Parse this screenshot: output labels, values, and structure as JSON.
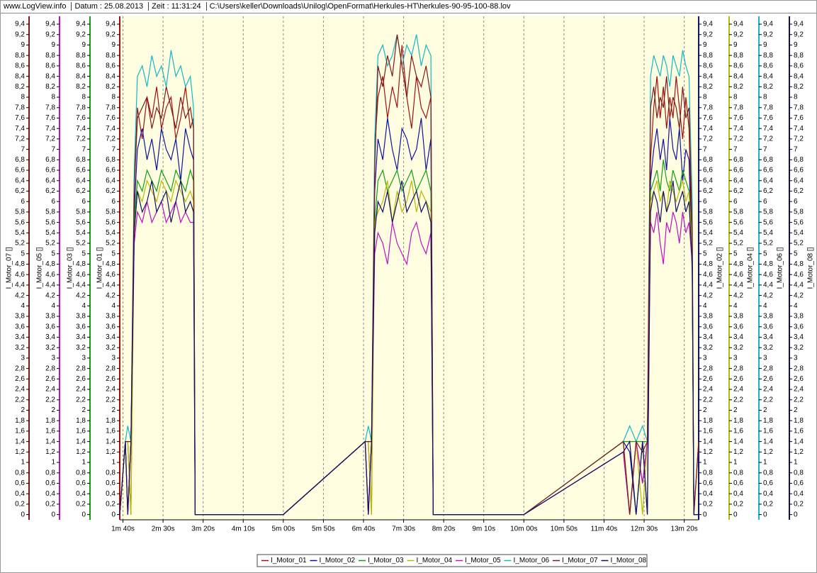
{
  "header": {
    "site": "www.LogView.info",
    "date": "Datum : 25.08.2013",
    "time": "Zeit : 11:31:24",
    "file": "C:\\Users\\keller\\Downloads\\Unilog\\OpenFormat\\Herkules-HT\\herkules-90-95-100-88.lov"
  },
  "chart_data": {
    "type": "line",
    "grid": true,
    "legend": "bottom",
    "x": [
      96,
      103,
      106,
      110,
      114,
      118,
      124,
      130,
      136,
      142,
      148,
      154,
      160,
      166,
      172,
      178,
      184,
      188,
      190,
      300,
      402,
      406,
      410,
      414,
      418,
      424,
      430,
      436,
      442,
      448,
      454,
      460,
      466,
      472,
      478,
      484,
      487,
      489,
      600,
      724,
      732,
      740,
      748,
      754,
      758,
      762,
      766,
      770,
      774,
      778,
      782,
      786,
      790,
      794,
      798,
      802,
      806,
      810,
      812,
      818
    ],
    "xlim": [
      96,
      818
    ],
    "xticks": [
      {
        "value": 100,
        "label": "1m 40s"
      },
      {
        "value": 150,
        "label": "2m 30s"
      },
      {
        "value": 200,
        "label": "3m 20s"
      },
      {
        "value": 250,
        "label": "4m 10s"
      },
      {
        "value": 300,
        "label": "5m 00s"
      },
      {
        "value": 350,
        "label": "5m 50s"
      },
      {
        "value": 400,
        "label": "6m 40s"
      },
      {
        "value": 450,
        "label": "7m 30s"
      },
      {
        "value": 500,
        "label": "8m 20s"
      },
      {
        "value": 550,
        "label": "9m 10s"
      },
      {
        "value": 600,
        "label": "10m 00s"
      },
      {
        "value": 650,
        "label": "10m 50s"
      },
      {
        "value": 700,
        "label": "11m 40s"
      },
      {
        "value": 750,
        "label": "12m 30s"
      },
      {
        "value": 800,
        "label": "13m 20s"
      }
    ],
    "ylim": [
      -0.1,
      9.55
    ],
    "yticks": [
      0,
      {
        "value": 0.2,
        "label": "0,2"
      },
      {
        "value": 0.4,
        "label": "0,4"
      },
      {
        "value": 0.6,
        "label": "0,6"
      },
      {
        "value": 0.8,
        "label": "0,8"
      },
      1,
      {
        "value": 1.2,
        "label": "1,2"
      },
      {
        "value": 1.4,
        "label": "1,4"
      },
      {
        "value": 1.6,
        "label": "1,6"
      },
      {
        "value": 1.8,
        "label": "1,8"
      },
      2,
      {
        "value": 2.2,
        "label": "2,2"
      },
      {
        "value": 2.4,
        "label": "2,4"
      },
      {
        "value": 2.6,
        "label": "2,6"
      },
      {
        "value": 2.8,
        "label": "2,8"
      },
      3,
      {
        "value": 3.2,
        "label": "3,2"
      },
      {
        "value": 3.4,
        "label": "3,4"
      },
      {
        "value": 3.6,
        "label": "3,6"
      },
      {
        "value": 3.8,
        "label": "3,8"
      },
      4,
      {
        "value": 4.2,
        "label": "4,2"
      },
      {
        "value": 4.4,
        "label": "4,4"
      },
      {
        "value": 4.6,
        "label": "4,6"
      },
      {
        "value": 4.8,
        "label": "4,8"
      },
      5,
      {
        "value": 5.2,
        "label": "5,2"
      },
      {
        "value": 5.4,
        "label": "5,4"
      },
      {
        "value": 5.6,
        "label": "5,6"
      },
      {
        "value": 5.8,
        "label": "5,8"
      },
      6,
      {
        "value": 6.2,
        "label": "6,2"
      },
      {
        "value": 6.4,
        "label": "6,4"
      },
      {
        "value": 6.6,
        "label": "6,6"
      },
      {
        "value": 6.8,
        "label": "6,8"
      },
      7,
      {
        "value": 7.2,
        "label": "7,2"
      },
      {
        "value": 7.4,
        "label": "7,4"
      },
      {
        "value": 7.6,
        "label": "7,6"
      },
      {
        "value": 7.8,
        "label": "7,8"
      },
      8,
      {
        "value": 8.2,
        "label": "8,2"
      },
      {
        "value": 8.4,
        "label": "8,4"
      },
      {
        "value": 8.6,
        "label": "8,6"
      },
      {
        "value": 8.8,
        "label": "8,8"
      },
      9,
      {
        "value": 9.2,
        "label": "9,2"
      },
      {
        "value": 9.4,
        "label": "9,4"
      }
    ],
    "series": [
      {
        "name": "I_Motor_01",
        "y_label": "I_Motor_01 []",
        "color": "#a01010",
        "values": [
          0,
          1.4,
          1.4,
          0,
          6.4,
          7.8,
          7.2,
          8.0,
          7.6,
          8.2,
          7.4,
          7.8,
          8.0,
          7.2,
          7.6,
          8.2,
          7.4,
          7.6,
          0,
          0,
          1.4,
          1.4,
          0,
          7.0,
          8.0,
          8.4,
          7.6,
          8.2,
          7.8,
          9.0,
          8.0,
          7.4,
          8.4,
          7.8,
          7.6,
          8.0,
          0,
          0,
          0,
          1.2,
          0,
          1.4,
          0.6,
          1.4,
          6.8,
          7.8,
          8.4,
          7.6,
          8.2,
          7.4,
          8.0,
          7.6,
          8.4,
          7.8,
          7.2,
          8.0,
          7.4,
          5.0,
          0,
          1.4
        ]
      },
      {
        "name": "I_Motor_02",
        "y_label": "I_Motor_02 []",
        "color": "#1010a0",
        "values": [
          0,
          1.4,
          0,
          1.4,
          5.8,
          7.0,
          7.4,
          6.8,
          7.2,
          6.6,
          7.4,
          7.0,
          6.8,
          7.2,
          6.4,
          7.4,
          7.0,
          6.8,
          0,
          0,
          1.4,
          0,
          1.4,
          6.2,
          7.2,
          6.8,
          7.6,
          7.0,
          6.6,
          7.4,
          7.2,
          6.8,
          7.0,
          7.6,
          6.6,
          7.2,
          0,
          0,
          0,
          1.4,
          1.2,
          0,
          1.4,
          0,
          6.4,
          7.0,
          7.4,
          6.8,
          7.2,
          6.6,
          7.6,
          7.0,
          6.8,
          7.4,
          6.4,
          7.0,
          6.8,
          4.6,
          0,
          0
        ]
      },
      {
        "name": "I_Motor_03",
        "y_label": "I_Motor_03 []",
        "color": "#10a010",
        "values": [
          0,
          1.4,
          1.4,
          1.4,
          5.6,
          6.4,
          6.2,
          6.6,
          6.4,
          6.2,
          6.6,
          6.4,
          6.2,
          6.6,
          6.4,
          6.2,
          6.6,
          6.4,
          0,
          0,
          1.4,
          1.4,
          1.4,
          5.6,
          6.4,
          6.6,
          6.2,
          6.4,
          6.6,
          6.2,
          6.4,
          6.6,
          6.2,
          6.4,
          6.6,
          6.2,
          0,
          0,
          0,
          1.4,
          1.4,
          1.4,
          1.4,
          1.4,
          6.2,
          6.4,
          6.6,
          6.2,
          6.8,
          6.4,
          6.2,
          6.6,
          6.4,
          6.2,
          6.6,
          6.4,
          6.2,
          5.2,
          0,
          0
        ]
      },
      {
        "name": "I_Motor_04",
        "y_label": "I_Motor_04 []",
        "color": "#b8b800",
        "values": [
          0,
          1.4,
          1.4,
          0,
          5.4,
          6.2,
          6.0,
          6.4,
          6.2,
          6.0,
          6.4,
          6.2,
          6.0,
          6.4,
          6.2,
          6.0,
          6.2,
          6.0,
          0,
          0,
          1.4,
          1.4,
          0,
          5.6,
          5.8,
          6.0,
          6.4,
          5.6,
          6.2,
          5.8,
          6.0,
          6.4,
          5.8,
          6.2,
          6.0,
          5.8,
          0,
          0,
          0,
          1.4,
          0,
          1.4,
          0,
          1.4,
          6.0,
          6.2,
          6.4,
          6.0,
          6.2,
          5.8,
          6.4,
          6.2,
          6.0,
          6.2,
          6.4,
          6.0,
          6.2,
          5.0,
          0,
          0
        ]
      },
      {
        "name": "I_Motor_05",
        "y_label": "I_Motor_05 []",
        "color": "#c010c0",
        "values": [
          0,
          1.4,
          0,
          1.4,
          5.2,
          5.8,
          5.6,
          6.0,
          5.6,
          5.8,
          6.0,
          5.6,
          5.8,
          6.0,
          5.6,
          5.8,
          5.6,
          5.6,
          0,
          0,
          1.4,
          0,
          1.4,
          5.0,
          5.4,
          5.2,
          4.8,
          5.6,
          5.2,
          5.0,
          4.8,
          5.4,
          5.6,
          5.2,
          5.0,
          5.4,
          0,
          0,
          0,
          1.2,
          0,
          1.4,
          0.6,
          1.4,
          5.6,
          5.4,
          5.8,
          5.2,
          4.8,
          5.6,
          5.4,
          5.8,
          5.6,
          5.2,
          5.8,
          5.4,
          5.6,
          4.8,
          0,
          0
        ]
      },
      {
        "name": "I_Motor_06",
        "y_label": "I_Motor_06 []",
        "color": "#10b8c8",
        "values": [
          0,
          1.4,
          1.7,
          1.4,
          6.6,
          8.4,
          8.6,
          8.2,
          8.8,
          8.4,
          8.6,
          8.2,
          8.9,
          8.4,
          8.6,
          8.2,
          8.4,
          7.8,
          0,
          0,
          1.4,
          1.7,
          1.4,
          7.2,
          8.8,
          9.0,
          8.6,
          8.8,
          9.2,
          8.6,
          9.0,
          8.8,
          9.2,
          8.6,
          9.0,
          8.8,
          0,
          0,
          0,
          1.4,
          1.7,
          1.4,
          1.7,
          1.4,
          8.4,
          8.8,
          8.6,
          8.4,
          8.8,
          8.6,
          8.2,
          8.8,
          8.6,
          8.4,
          8.9,
          8.6,
          8.4,
          6.0,
          0,
          0
        ]
      },
      {
        "name": "I_Motor_07",
        "y_label": "I_Motor_07 []",
        "color": "#801818",
        "values": [
          0,
          1.4,
          1.4,
          1.4,
          6.2,
          7.6,
          7.8,
          8.0,
          7.4,
          7.8,
          7.6,
          8.2,
          7.8,
          7.4,
          8.0,
          7.6,
          7.8,
          7.4,
          0,
          0,
          1.4,
          1.4,
          1.4,
          6.6,
          8.6,
          8.2,
          8.8,
          8.4,
          9.2,
          8.6,
          8.0,
          8.8,
          8.4,
          8.2,
          8.6,
          8.0,
          0,
          0,
          0,
          1.4,
          0,
          1.4,
          1.2,
          1.4,
          7.8,
          8.2,
          7.6,
          8.0,
          7.8,
          8.4,
          7.6,
          8.0,
          7.8,
          7.4,
          8.2,
          7.6,
          7.8,
          5.4,
          0,
          1.4
        ]
      },
      {
        "name": "I_Motor_08",
        "y_label": "I_Motor_08 []",
        "color": "#101060",
        "values": [
          0,
          1.4,
          0,
          1.4,
          5.4,
          6.2,
          5.8,
          6.0,
          6.4,
          5.8,
          6.0,
          6.2,
          5.6,
          6.0,
          6.4,
          5.8,
          6.0,
          5.8,
          0,
          0,
          1.4,
          0,
          1.4,
          5.4,
          6.0,
          5.8,
          6.2,
          5.6,
          6.0,
          6.4,
          5.8,
          6.0,
          6.2,
          5.8,
          6.0,
          5.6,
          0,
          0,
          0,
          1.2,
          1.4,
          0,
          1.4,
          0,
          5.8,
          6.2,
          6.0,
          5.6,
          6.2,
          5.8,
          6.0,
          6.4,
          5.8,
          6.0,
          6.2,
          5.8,
          6.0,
          4.8,
          0,
          0
        ]
      }
    ]
  }
}
